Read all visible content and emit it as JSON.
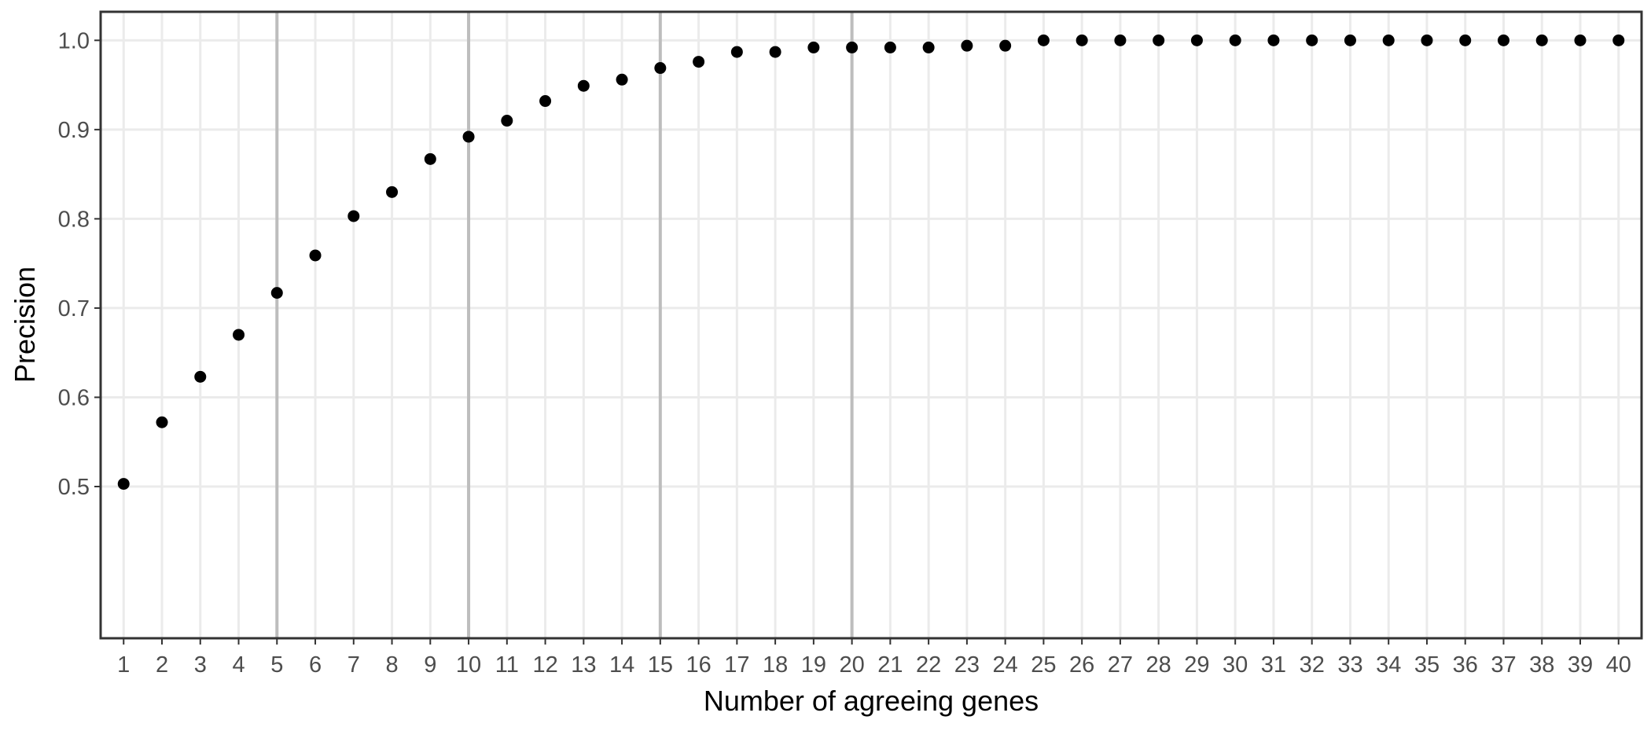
{
  "chart_data": {
    "type": "scatter",
    "title": "",
    "xlabel": "Number of agreeing genes",
    "ylabel": "Precision",
    "x": [
      1,
      2,
      3,
      4,
      5,
      6,
      7,
      8,
      9,
      10,
      11,
      12,
      13,
      14,
      15,
      16,
      17,
      18,
      19,
      20,
      21,
      22,
      23,
      24,
      25,
      26,
      27,
      28,
      29,
      30,
      31,
      32,
      33,
      34,
      35,
      36,
      37,
      38,
      39,
      40
    ],
    "y": [
      0.503,
      0.572,
      0.623,
      0.67,
      0.717,
      0.759,
      0.803,
      0.83,
      0.867,
      0.892,
      0.91,
      0.932,
      0.949,
      0.956,
      0.969,
      0.976,
      0.987,
      0.987,
      0.992,
      0.992,
      0.992,
      0.992,
      0.994,
      0.994,
      1.0,
      1.0,
      1.0,
      1.0,
      1.0,
      1.0,
      1.0,
      1.0,
      1.0,
      1.0,
      1.0,
      1.0,
      1.0,
      1.0,
      1.0,
      1.0
    ],
    "x_ticks": [
      "1",
      "2",
      "3",
      "4",
      "5",
      "6",
      "7",
      "8",
      "9",
      "10",
      "11",
      "12",
      "13",
      "14",
      "15",
      "16",
      "17",
      "18",
      "19",
      "20",
      "21",
      "22",
      "23",
      "24",
      "25",
      "26",
      "27",
      "28",
      "29",
      "30",
      "31",
      "32",
      "33",
      "34",
      "35",
      "36",
      "37",
      "38",
      "39",
      "40"
    ],
    "y_ticks": [
      "0.5",
      "0.6",
      "0.7",
      "0.8",
      "0.9",
      "1.0"
    ],
    "y_tick_values": [
      0.5,
      0.6,
      0.7,
      0.8,
      0.9,
      1.0
    ],
    "xlim": [
      0.4,
      40.6
    ],
    "ylim": [
      0.33,
      1.032
    ],
    "highlight_x": [
      5,
      10,
      15,
      20
    ],
    "grid": true,
    "legend": "none",
    "colors": {
      "point": "#000000",
      "grid": "#ebebeb",
      "highlight_line": "#bdbdbd",
      "panel_border": "#333333",
      "tick_text": "#4d4d4d"
    }
  }
}
